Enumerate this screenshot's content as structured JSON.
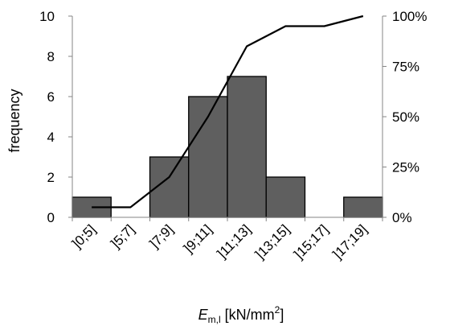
{
  "chart_data": {
    "type": "bar",
    "subtype": "histogram-with-cumulative-line",
    "categories": [
      "]0;5]",
      "]5;7]",
      "]7;9]",
      "]9;11]",
      "]11;13]",
      "]13;15]",
      "]15;17]",
      "]17;19]"
    ],
    "series": [
      {
        "type": "bar",
        "axis": "left",
        "values": [
          1,
          0,
          3,
          6,
          7,
          2,
          0,
          1
        ]
      },
      {
        "type": "line",
        "axis": "right",
        "values": [
          5,
          5,
          20,
          50,
          85,
          95,
          95,
          100
        ]
      }
    ],
    "ylabel": "frequency",
    "ylim": [
      0,
      10
    ],
    "yticks": [
      "0",
      "2",
      "4",
      "6",
      "8",
      "10"
    ],
    "y2lim": [
      0,
      100
    ],
    "y2ticks": [
      "0%",
      "25%",
      "50%",
      "75%",
      "100%"
    ],
    "xlabel": {
      "base": "E",
      "subscript": "m,l",
      "unit_before": " [kN/mm",
      "superscript": "2",
      "unit_after": "]"
    },
    "grid": false,
    "legend": "none",
    "colors": {
      "bar_fill": "#5f5f5f",
      "bar_edge": "#000000",
      "line": "#000000",
      "axis": "#868686"
    }
  }
}
